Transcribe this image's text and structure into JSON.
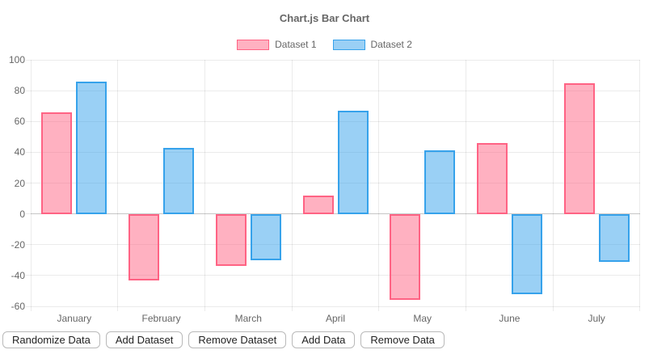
{
  "title": "Chart.js Bar Chart",
  "colors": {
    "text": "#666666",
    "grid": "rgba(0,0,0,0.08)",
    "zero_line": "rgba(0,0,0,0.22)",
    "background": "#ffffff",
    "dataset1_fill": "rgba(255,99,132,0.5)",
    "dataset1_border": "#ff6384",
    "dataset2_fill": "rgba(54,162,235,0.5)",
    "dataset2_border": "#36a2eb"
  },
  "chart_data": {
    "type": "bar",
    "title": "Chart.js Bar Chart",
    "categories": [
      "January",
      "February",
      "March",
      "April",
      "May",
      "June",
      "July"
    ],
    "series": [
      {
        "name": "Dataset 1",
        "fill": "rgba(255,99,132,0.5)",
        "border": "#ff6384",
        "values": [
          66,
          -43,
          -34,
          12,
          -56,
          46,
          85
        ]
      },
      {
        "name": "Dataset 2",
        "fill": "rgba(54,162,235,0.5)",
        "border": "#36a2eb",
        "values": [
          86,
          43,
          -30,
          67,
          41,
          -52,
          -31
        ]
      }
    ],
    "xlabel": "",
    "ylabel": "",
    "ylim": [
      -60,
      100
    ],
    "yticks": [
      100,
      80,
      60,
      40,
      20,
      0,
      -20,
      -40,
      -60
    ],
    "grid": true,
    "legend_position": "top"
  },
  "toolbar": {
    "buttons": [
      "Randomize Data",
      "Add Dataset",
      "Remove Dataset",
      "Add Data",
      "Remove Data"
    ]
  }
}
